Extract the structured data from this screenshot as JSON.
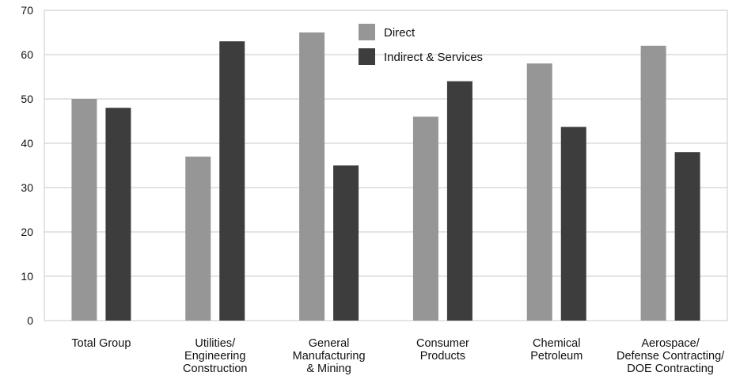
{
  "chart_data": {
    "type": "bar",
    "title": "",
    "xlabel": "",
    "ylabel": "",
    "ylim": [
      0,
      70
    ],
    "yticks": [
      0,
      10,
      20,
      30,
      40,
      50,
      60,
      70
    ],
    "grid": true,
    "legend_position": "top-center",
    "categories": [
      [
        "Total Group"
      ],
      [
        "Utilities/",
        "Engineering",
        "Construction"
      ],
      [
        "General",
        "Manufacturing",
        "& Mining"
      ],
      [
        "Consumer",
        "Products"
      ],
      [
        "Chemical",
        "Petroleum"
      ],
      [
        "Aerospace/",
        "Defense Contracting/",
        "DOE Contracting"
      ]
    ],
    "series": [
      {
        "name": "Direct",
        "color": "#969696",
        "values": [
          50,
          37,
          65,
          46,
          58,
          62
        ]
      },
      {
        "name": "Indirect & Services",
        "color": "#3d3d3d",
        "values": [
          48,
          63,
          35,
          54,
          43.7,
          38
        ]
      }
    ]
  }
}
